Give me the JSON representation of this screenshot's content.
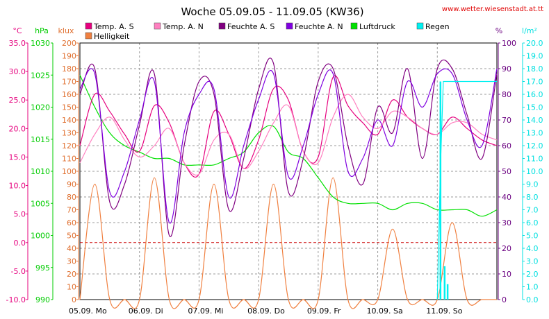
{
  "chart_data": {
    "type": "line",
    "title": "Woche 05.09.05 - 11.09.05 (KW36)",
    "source": "www.wetter.wiesenstadt.at.tt",
    "x_labels": [
      "05.09.  Mo",
      "06.09.  Di",
      "07.09.  Mi",
      "08.09.  Do",
      "09.09.  Fr",
      "10.09.  Sa",
      "11.09.  So"
    ],
    "axes": {
      "temp": {
        "unit": "°C",
        "color": "#e6007e",
        "min": -10,
        "max": 35,
        "ticks": [
          "35.0",
          "30.0",
          "25.0",
          "20.0",
          "15.0",
          "10.0",
          "5.0",
          "0.0",
          "-5.0",
          "-10.0"
        ]
      },
      "press": {
        "unit": "hPa",
        "color": "#00cc00",
        "min": 990,
        "max": 1030,
        "ticks": [
          "1030",
          "1025",
          "1020",
          "1015",
          "1010",
          "1005",
          "1000",
          "995",
          "990"
        ]
      },
      "klux": {
        "unit": "klux",
        "color": "#e07030",
        "min": 0,
        "max": 200,
        "ticks": [
          "200",
          "190",
          "180",
          "170",
          "160",
          "150",
          "140",
          "130",
          "120",
          "110",
          "100",
          "90",
          "80",
          "70",
          "60",
          "50",
          "40",
          "30",
          "20",
          "10",
          "0"
        ]
      },
      "hum": {
        "unit": "%",
        "color": "#6a0080",
        "min": 0,
        "max": 100,
        "ticks": [
          "100",
          "90",
          "80",
          "70",
          "60",
          "50",
          "40",
          "30",
          "20",
          "10",
          "0"
        ]
      },
      "rain": {
        "unit": "l/m²",
        "color": "#00e0e0",
        "min": 0,
        "max": 20,
        "ticks": [
          "20.0",
          "19.0",
          "18.0",
          "17.0",
          "16.0",
          "15.0",
          "14.0",
          "13.0",
          "12.0",
          "11.0",
          "10.0",
          "9.0",
          "8.0",
          "7.0",
          "6.0",
          "5.0",
          "4.0",
          "3.0",
          "2.0",
          "1.0",
          "0.0"
        ]
      }
    },
    "grid": true,
    "legend": [
      {
        "label": "Temp. A. S",
        "color": "#e6007e"
      },
      {
        "label": "Temp. A. N",
        "color": "#ff80c0"
      },
      {
        "label": "Feuchte A. S",
        "color": "#800080"
      },
      {
        "label": "Feuchte A. N",
        "color": "#8000e0"
      },
      {
        "label": "Luftdruck",
        "color": "#00e000"
      },
      {
        "label": "Regen",
        "color": "#00f0f0"
      },
      {
        "label": "Helligkeit",
        "color": "#f08040"
      }
    ],
    "x": [
      0,
      0.25,
      0.5,
      0.75,
      1,
      1.25,
      1.5,
      1.75,
      2,
      2.25,
      2.5,
      2.75,
      3,
      3.25,
      3.5,
      3.75,
      4,
      4.25,
      4.5,
      4.75,
      5,
      5.25,
      5.5,
      5.75,
      6,
      6.25,
      6.5,
      6.75,
      7
    ],
    "series": [
      {
        "name": "Temp. A. S",
        "axis": "temp",
        "color": "#e6007e",
        "values": [
          17,
          26,
          23,
          19,
          16,
          24,
          21,
          14,
          12,
          23,
          19,
          13,
          18,
          27,
          25,
          16,
          15,
          29,
          24,
          21,
          19,
          25,
          22,
          20,
          19,
          22,
          20,
          18,
          17
        ]
      },
      {
        "name": "Temp. A. N",
        "axis": "temp",
        "color": "#ff80c0",
        "values": [
          14,
          19,
          22,
          18,
          15,
          17,
          20,
          14,
          12,
          18,
          19,
          13,
          16,
          21,
          24,
          16,
          14,
          22,
          26,
          22,
          20,
          23,
          22,
          20,
          19,
          21,
          21,
          19,
          18
        ]
      },
      {
        "name": "Feuchte A. S",
        "axis": "hum",
        "color": "#800080",
        "values": [
          80,
          90,
          38,
          45,
          68,
          88,
          25,
          60,
          85,
          80,
          35,
          55,
          82,
          92,
          42,
          55,
          85,
          90,
          60,
          45,
          75,
          65,
          90,
          55,
          90,
          90,
          72,
          55,
          88
        ]
      },
      {
        "name": "Feuchte A. N",
        "axis": "hum",
        "color": "#8000e0",
        "values": [
          82,
          88,
          42,
          50,
          70,
          85,
          30,
          65,
          80,
          82,
          40,
          60,
          78,
          88,
          48,
          60,
          80,
          88,
          50,
          55,
          70,
          60,
          85,
          75,
          88,
          88,
          70,
          60,
          90
        ]
      },
      {
        "name": "Luftdruck",
        "axis": "press",
        "color": "#00e000",
        "values": [
          1025,
          1020,
          1016,
          1014,
          1013,
          1012,
          1012,
          1011,
          1011,
          1011,
          1012,
          1013,
          1016,
          1017,
          1013,
          1012,
          1009,
          1006,
          1005,
          1005,
          1005,
          1004,
          1005,
          1005,
          1004,
          1004,
          1004,
          1003,
          1004
        ]
      },
      {
        "name": "Helligkeit",
        "axis": "klux",
        "color": "#f08040",
        "values": [
          0,
          90,
          0,
          0,
          0,
          95,
          0,
          0,
          0,
          90,
          0,
          0,
          0,
          90,
          0,
          0,
          0,
          95,
          0,
          0,
          0,
          55,
          0,
          0,
          0,
          60,
          0,
          0,
          0
        ]
      }
    ],
    "rain": {
      "axis": "rain",
      "x": [
        6.0,
        6.05,
        6.1,
        6.2,
        6.3,
        7.0
      ],
      "values": [
        0,
        10,
        17,
        17,
        17,
        17
      ],
      "bars": [
        {
          "x": 6.05,
          "value": 17
        },
        {
          "x": 6.12,
          "value": 2.6
        },
        {
          "x": 6.17,
          "value": 1.2
        }
      ]
    },
    "reference_line": {
      "axis": "temp",
      "value": 0,
      "color": "#cc0000"
    }
  }
}
